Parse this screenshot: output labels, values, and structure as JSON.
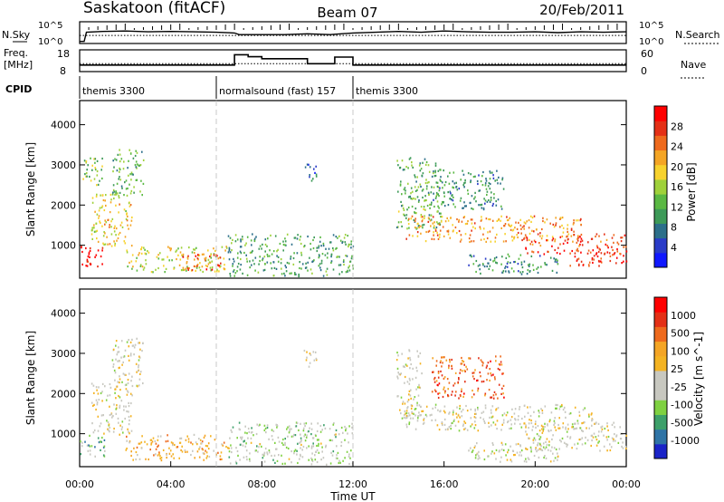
{
  "header": {
    "station": "Saskatoon (fitACF)",
    "beam": "Beam 07",
    "date": "20/Feb/2011"
  },
  "chart_data": [
    {
      "type": "line",
      "panel": "noise",
      "left_label": "N.Sky",
      "right_label": "N.Search",
      "left_ticks": [
        "10^5",
        "10^0"
      ],
      "right_ticks": [
        "10^5",
        "10^0"
      ],
      "series": [
        {
          "name": "N.Sky",
          "x": [
            0.0,
            0.2,
            0.3,
            1,
            2,
            3,
            4,
            5,
            6,
            6.8,
            7,
            8,
            9,
            10,
            11,
            12,
            13,
            14,
            15,
            16,
            17,
            18,
            19,
            20,
            21,
            22,
            23,
            24
          ],
          "y_log10": [
            0.3,
            0.3,
            2.6,
            2.8,
            2.9,
            2.7,
            2.8,
            2.7,
            2.6,
            2.4,
            2.0,
            2.0,
            2.0,
            2.2,
            2.0,
            2.4,
            2.6,
            2.8,
            2.6,
            2.9,
            2.7,
            2.6,
            2.6,
            2.7,
            2.5,
            2.7,
            2.6,
            2.7
          ]
        },
        {
          "name": "N.Search",
          "x": [
            0,
            24
          ],
          "y_log10": [
            1.8,
            1.8
          ]
        }
      ]
    },
    {
      "type": "line",
      "panel": "frequency",
      "left_label_line1": "Freq.",
      "left_label_line2": "[MHz]",
      "right_label": "Nave",
      "left_ticks": [
        "18",
        "8"
      ],
      "right_ticks": [
        "60",
        "0"
      ],
      "series": [
        {
          "name": "Freq.",
          "x": [
            0,
            6.8,
            6.8,
            7.4,
            7.4,
            8.0,
            8.0,
            10,
            10,
            11.2,
            11.2,
            12,
            12,
            24
          ],
          "y": [
            10.8,
            10.8,
            16,
            16,
            15,
            15,
            14,
            14,
            11.5,
            11.5,
            14.8,
            14.8,
            10.8,
            10.8
          ]
        },
        {
          "name": "Nave",
          "x": [
            0,
            24
          ],
          "y": [
            21,
            21
          ]
        }
      ]
    },
    {
      "type": "table",
      "panel": "cpid",
      "label": "CPID",
      "segments": [
        {
          "start": 0,
          "end": 6,
          "text": "themis 3300"
        },
        {
          "start": 6,
          "end": 12,
          "text": "normalsound (fast) 157"
        },
        {
          "start": 12,
          "end": 24,
          "text": "themis 3300"
        }
      ]
    },
    {
      "type": "heatmap",
      "panel": "power",
      "ylabel": "Slant Range [km]",
      "ylim": [
        180,
        4600
      ],
      "yticks": [
        1000,
        2000,
        3000,
        4000
      ],
      "colorbar_label": "Power [dB]",
      "colorbar_ticks": [
        "4",
        "8",
        "12",
        "16",
        "20",
        "24",
        "28"
      ],
      "colorbar_colors": [
        "#1018ff",
        "#2a3cc8",
        "#2c6f8a",
        "#3d9a58",
        "#5ab843",
        "#9fd13a",
        "#f7d22d",
        "#f4a525",
        "#ee6a1d",
        "#e43016",
        "#ff0000"
      ],
      "regions": [
        {
          "t0": 0.0,
          "t1": 1.1,
          "r0": 450,
          "r1": 1000,
          "level": 0.95
        },
        {
          "t0": 0.5,
          "t1": 2.3,
          "r0": 1000,
          "r1": 2300,
          "level": 0.6
        },
        {
          "t0": 0.0,
          "t1": 1.0,
          "r0": 2500,
          "r1": 3200,
          "level": 0.45
        },
        {
          "t0": 1.4,
          "t1": 2.8,
          "r0": 2200,
          "r1": 3400,
          "level": 0.4
        },
        {
          "t0": 2.0,
          "t1": 6.5,
          "r0": 350,
          "r1": 1000,
          "level": 0.55
        },
        {
          "t0": 4.5,
          "t1": 6.2,
          "r0": 400,
          "r1": 800,
          "level": 0.8
        },
        {
          "t0": 6.5,
          "t1": 12.0,
          "r0": 250,
          "r1": 1300,
          "level": 0.35
        },
        {
          "t0": 9.8,
          "t1": 10.4,
          "r0": 2600,
          "r1": 3100,
          "level": 0.2
        },
        {
          "t0": 13.9,
          "t1": 16.0,
          "r0": 1400,
          "r1": 3200,
          "level": 0.4
        },
        {
          "t0": 15.5,
          "t1": 18.6,
          "r0": 1900,
          "r1": 2900,
          "level": 0.3
        },
        {
          "t0": 14.3,
          "t1": 22.0,
          "r0": 1100,
          "r1": 1750,
          "level": 0.7
        },
        {
          "t0": 19.5,
          "t1": 24.0,
          "r0": 800,
          "r1": 1300,
          "level": 0.85
        },
        {
          "t0": 21.5,
          "t1": 24.0,
          "r0": 500,
          "r1": 900,
          "level": 0.9
        },
        {
          "t0": 17.0,
          "t1": 21.0,
          "r0": 300,
          "r1": 800,
          "level": 0.3
        }
      ]
    },
    {
      "type": "heatmap",
      "panel": "velocity",
      "ylabel": "Slant Range [km]",
      "ylim": [
        180,
        4600
      ],
      "yticks": [
        1000,
        2000,
        3000,
        4000
      ],
      "xlabel": "Time UT",
      "x_ticks": [
        "00:00",
        "04:00",
        "08:00",
        "12:00",
        "16:00",
        "20:00",
        "00:00"
      ],
      "colorbar_label": "Velocity [m s^-1]",
      "colorbar_ticks": [
        "1000",
        "500",
        "100",
        "25",
        "-25",
        "-100",
        "-500",
        "-1000"
      ],
      "colorbar_colors": [
        "#1a24c8",
        "#2f74a6",
        "#3da06a",
        "#7fd141",
        "#c8c8c0",
        "#c8c8c0",
        "#f4b322",
        "#f4a525",
        "#ee6a1d",
        "#e43016",
        "#ff0000"
      ],
      "regions": [
        {
          "t0": 0.0,
          "t1": 1.1,
          "r0": 450,
          "r1": 1000,
          "level": 0.3
        },
        {
          "t0": 0.5,
          "t1": 2.3,
          "r0": 1000,
          "r1": 2300,
          "level": 0.48
        },
        {
          "t0": 1.4,
          "t1": 2.8,
          "r0": 2200,
          "r1": 3400,
          "level": 0.48
        },
        {
          "t0": 2.0,
          "t1": 6.5,
          "r0": 350,
          "r1": 1000,
          "level": 0.62
        },
        {
          "t0": 6.5,
          "t1": 12.0,
          "r0": 250,
          "r1": 1300,
          "level": 0.4
        },
        {
          "t0": 9.8,
          "t1": 10.4,
          "r0": 2600,
          "r1": 3100,
          "level": 0.48
        },
        {
          "t0": 13.9,
          "t1": 15.0,
          "r0": 1400,
          "r1": 3200,
          "level": 0.48
        },
        {
          "t0": 15.4,
          "t1": 18.6,
          "r0": 1900,
          "r1": 2950,
          "level": 0.8
        },
        {
          "t0": 14.3,
          "t1": 22.5,
          "r0": 1100,
          "r1": 1750,
          "level": 0.48
        },
        {
          "t0": 19.5,
          "t1": 24.0,
          "r0": 600,
          "r1": 1300,
          "level": 0.48
        },
        {
          "t0": 17.0,
          "t1": 21.0,
          "r0": 300,
          "r1": 800,
          "level": 0.45
        }
      ]
    }
  ]
}
